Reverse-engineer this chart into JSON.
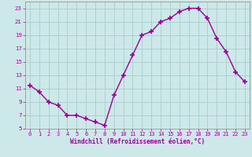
{
  "x": [
    0,
    1,
    2,
    3,
    4,
    5,
    6,
    7,
    8,
    9,
    10,
    11,
    12,
    13,
    14,
    15,
    16,
    17,
    18,
    19,
    20,
    21,
    22,
    23
  ],
  "y": [
    11.5,
    10.5,
    9.0,
    8.5,
    7.0,
    7.0,
    6.5,
    6.0,
    5.5,
    10.0,
    13.0,
    16.0,
    19.0,
    19.5,
    21.0,
    21.5,
    22.5,
    23.0,
    23.0,
    21.5,
    18.5,
    16.5,
    13.5,
    12.0
  ],
  "line_color": "#990099",
  "marker": "+",
  "marker_size": 4,
  "bg_color": "#cce8e8",
  "grid_color": "#aacccc",
  "xlabel": "Windchill (Refroidissement éolien,°C)",
  "xlabel_color": "#990099",
  "tick_color": "#990099",
  "ylim": [
    5,
    24
  ],
  "xlim": [
    -0.5,
    23.5
  ],
  "yticks": [
    5,
    7,
    9,
    11,
    13,
    15,
    17,
    19,
    21,
    23
  ],
  "xticks": [
    0,
    1,
    2,
    3,
    4,
    5,
    6,
    7,
    8,
    9,
    10,
    11,
    12,
    13,
    14,
    15,
    16,
    17,
    18,
    19,
    20,
    21,
    22,
    23
  ],
  "line_width": 1.0,
  "tick_fontsize": 5.0,
  "xlabel_fontsize": 5.5
}
